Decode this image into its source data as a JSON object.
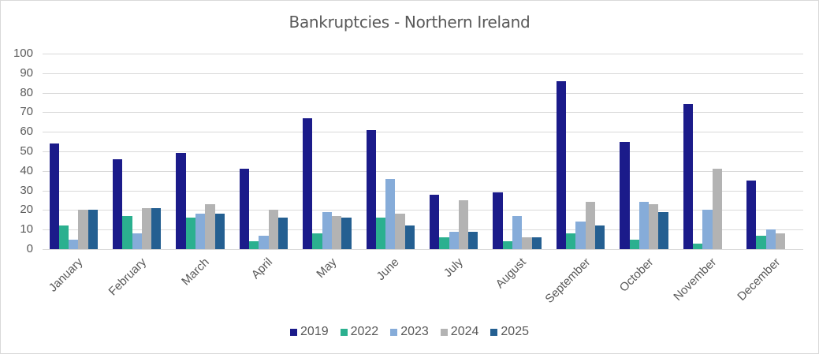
{
  "chart_data": {
    "type": "bar",
    "title": "Bankruptcies - Northern Ireland",
    "xlabel": "",
    "ylabel": "",
    "ylim": [
      0,
      100
    ],
    "yticks": [
      0,
      10,
      20,
      30,
      40,
      50,
      60,
      70,
      80,
      90,
      100
    ],
    "grid": true,
    "legend_position": "bottom",
    "categories": [
      "January",
      "February",
      "March",
      "April",
      "May",
      "June",
      "July",
      "August",
      "September",
      "October",
      "November",
      "December"
    ],
    "series": [
      {
        "name": "2019",
        "color": "#1b1b8a",
        "values": [
          54,
          46,
          49,
          41,
          67,
          61,
          28,
          29,
          86,
          55,
          74,
          35
        ]
      },
      {
        "name": "2022",
        "color": "#2bb08f",
        "values": [
          12,
          17,
          16,
          4,
          8,
          16,
          6,
          4,
          8,
          5,
          3,
          7
        ]
      },
      {
        "name": "2023",
        "color": "#86acd9",
        "values": [
          5,
          8,
          18,
          7,
          19,
          36,
          9,
          17,
          14,
          24,
          20,
          10
        ]
      },
      {
        "name": "2024",
        "color": "#b3b3b3",
        "values": [
          20,
          21,
          23,
          20,
          17,
          18,
          25,
          6,
          24,
          23,
          41,
          8
        ]
      },
      {
        "name": "2025",
        "color": "#245f91",
        "values": [
          20,
          21,
          18,
          16,
          16,
          12,
          9,
          6,
          12,
          19,
          null,
          null
        ]
      }
    ]
  }
}
